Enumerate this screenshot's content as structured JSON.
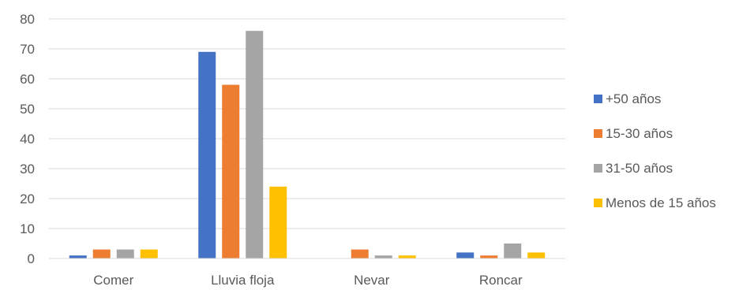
{
  "chart_data": {
    "type": "bar",
    "title": "",
    "xlabel": "",
    "ylabel": "",
    "categories": [
      "Comer",
      "Lluvia floja",
      "Nevar",
      "Roncar"
    ],
    "series": [
      {
        "name": "+50 años",
        "color": "#4472C4",
        "values": [
          1,
          69,
          0,
          2
        ]
      },
      {
        "name": "15-30 años",
        "color": "#ED7D31",
        "values": [
          3,
          58,
          3,
          1
        ]
      },
      {
        "name": "31-50 años",
        "color": "#A5A5A5",
        "values": [
          3,
          76,
          1,
          5
        ]
      },
      {
        "name": "Menos de 15 años",
        "color": "#FFC000",
        "values": [
          3,
          24,
          1,
          2
        ]
      }
    ],
    "ylim": [
      0,
      80
    ],
    "yticks": [
      0,
      10,
      20,
      30,
      40,
      50,
      60,
      70,
      80
    ],
    "grid": true,
    "legend_position": "right"
  }
}
